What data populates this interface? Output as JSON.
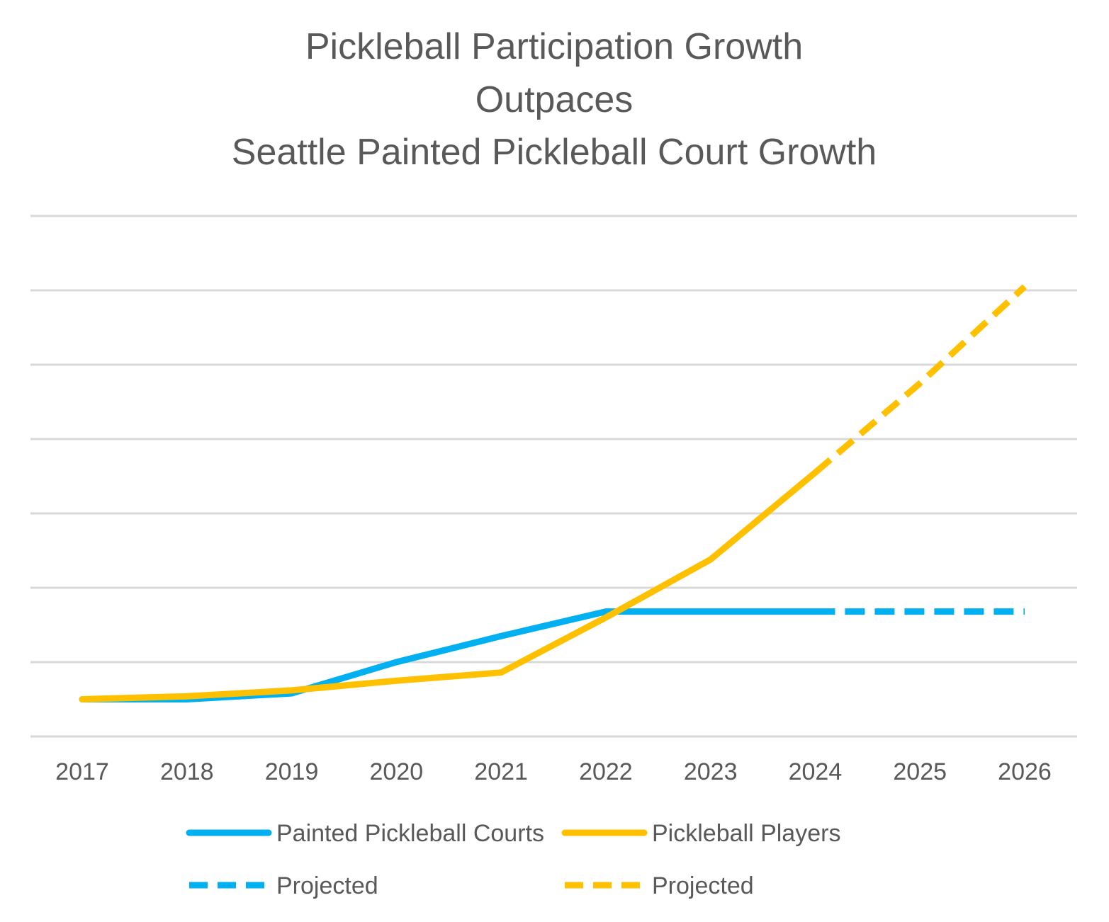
{
  "chart_data": {
    "type": "line",
    "title_lines": [
      "Pickleball Participation Growth",
      "Outpaces",
      "Seattle Painted Pickleball Court Growth"
    ],
    "xlabel": "",
    "ylabel": "",
    "categories": [
      "2017",
      "2018",
      "2019",
      "2020",
      "2021",
      "2022",
      "2023",
      "2024",
      "2025",
      "2026"
    ],
    "ylim": [
      0,
      7
    ],
    "gridlines": 7,
    "y_tick_labels_shown": false,
    "legend_position": "bottom",
    "series": [
      {
        "name": "Painted Pickleball Courts",
        "color": "#00b0f0",
        "style": "solid",
        "values": [
          0.5,
          0.5,
          0.58,
          1.0,
          1.35,
          1.68,
          1.68,
          1.68,
          null,
          null
        ]
      },
      {
        "name": "Pickleball Players",
        "color": "#ffc000",
        "style": "solid",
        "values": [
          0.5,
          0.54,
          0.62,
          0.75,
          0.86,
          1.6,
          2.38,
          3.55,
          null,
          null
        ]
      },
      {
        "name": "Projected",
        "color": "#00b0f0",
        "style": "dashed",
        "values": [
          null,
          null,
          null,
          null,
          null,
          null,
          null,
          1.68,
          1.68,
          1.68
        ]
      },
      {
        "name": "Projected",
        "color": "#ffc000",
        "style": "dashed",
        "values": [
          null,
          null,
          null,
          null,
          null,
          null,
          null,
          3.55,
          4.75,
          6.05
        ]
      }
    ]
  }
}
